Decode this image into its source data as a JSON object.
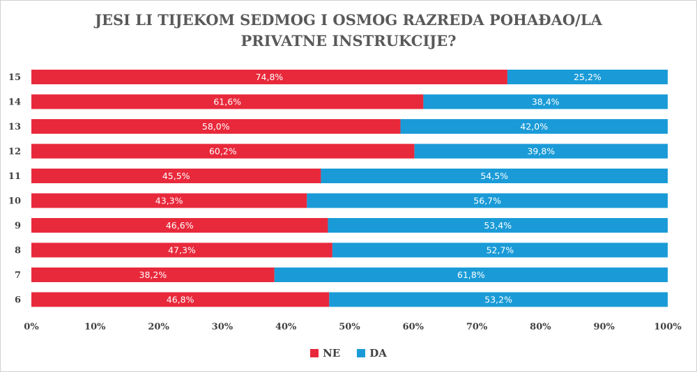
{
  "chart_data": {
    "type": "bar",
    "orientation": "horizontal",
    "stacked": true,
    "title": "JESI LI TIJEKOM SEDMOG I OSMOG RAZREDA POHAĐAO/LA PRIVATNE INSTRUKCIJE?",
    "categories": [
      "15",
      "14",
      "13",
      "12",
      "11",
      "10",
      "9",
      "8",
      "7",
      "6"
    ],
    "series": [
      {
        "name": "NE",
        "color": "#e8293b",
        "values": [
          74.8,
          61.6,
          58.0,
          60.2,
          45.5,
          43.3,
          46.6,
          47.3,
          38.2,
          46.8
        ],
        "labels": [
          "74,8%",
          "61,6%",
          "58,0%",
          "60,2%",
          "45,5%",
          "43,3%",
          "46,6%",
          "47,3%",
          "38,2%",
          "46,8%"
        ]
      },
      {
        "name": "DA",
        "color": "#1a9bd7",
        "values": [
          25.2,
          38.4,
          42.0,
          39.8,
          54.5,
          56.7,
          53.4,
          52.7,
          61.8,
          53.2
        ],
        "labels": [
          "25,2%",
          "38,4%",
          "42,0%",
          "39,8%",
          "54,5%",
          "56,7%",
          "53,4%",
          "52,7%",
          "61,8%",
          "53,2%"
        ]
      }
    ],
    "xlim": [
      0,
      100
    ],
    "xticks": [
      "0%",
      "10%",
      "20%",
      "30%",
      "40%",
      "50%",
      "60%",
      "70%",
      "80%",
      "90%",
      "100%"
    ],
    "legend_position": "bottom",
    "grid": false
  }
}
